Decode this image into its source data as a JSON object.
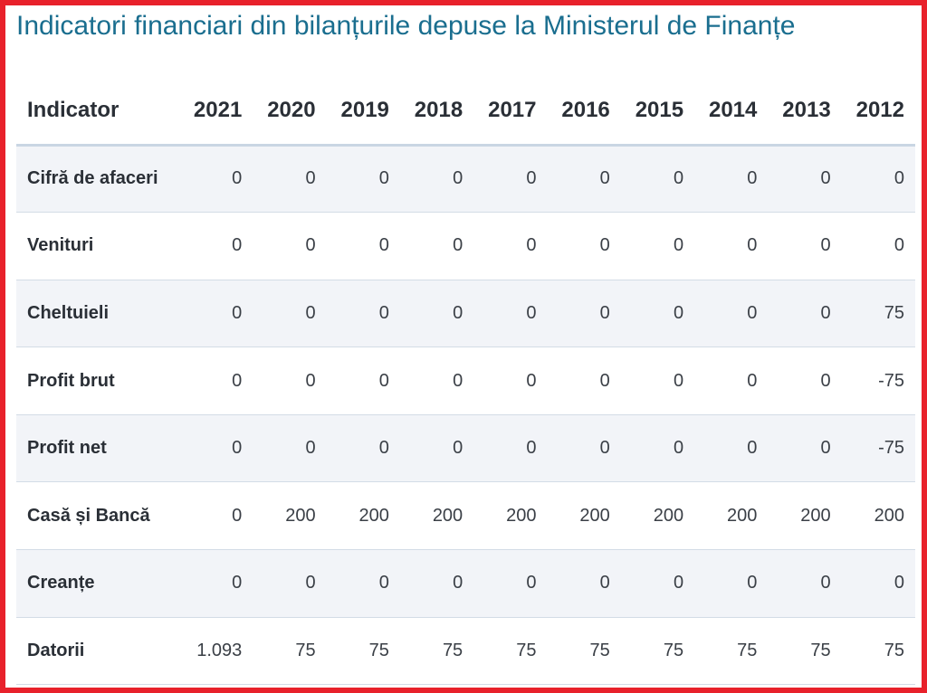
{
  "title": "Indicatori financiari din bilanțurile depuse la Ministerul de Finanțe",
  "table": {
    "indicator_header": "Indicator",
    "years": [
      "2021",
      "2020",
      "2019",
      "2018",
      "2017",
      "2016",
      "2015",
      "2014",
      "2013",
      "2012"
    ],
    "rows": [
      {
        "label": "Cifră de afaceri",
        "values": [
          "0",
          "0",
          "0",
          "0",
          "0",
          "0",
          "0",
          "0",
          "0",
          "0"
        ]
      },
      {
        "label": "Venituri",
        "values": [
          "0",
          "0",
          "0",
          "0",
          "0",
          "0",
          "0",
          "0",
          "0",
          "0"
        ]
      },
      {
        "label": "Cheltuieli",
        "values": [
          "0",
          "0",
          "0",
          "0",
          "0",
          "0",
          "0",
          "0",
          "0",
          "75"
        ]
      },
      {
        "label": "Profit brut",
        "values": [
          "0",
          "0",
          "0",
          "0",
          "0",
          "0",
          "0",
          "0",
          "0",
          "-75"
        ]
      },
      {
        "label": "Profit net",
        "values": [
          "0",
          "0",
          "0",
          "0",
          "0",
          "0",
          "0",
          "0",
          "0",
          "-75"
        ]
      },
      {
        "label": "Casă și Bancă",
        "values": [
          "0",
          "200",
          "200",
          "200",
          "200",
          "200",
          "200",
          "200",
          "200",
          "200"
        ]
      },
      {
        "label": "Creanțe",
        "values": [
          "0",
          "0",
          "0",
          "0",
          "0",
          "0",
          "0",
          "0",
          "0",
          "0"
        ]
      },
      {
        "label": "Datorii",
        "values": [
          "1.093",
          "75",
          "75",
          "75",
          "75",
          "75",
          "75",
          "75",
          "75",
          "75"
        ]
      }
    ]
  },
  "colors": {
    "frame_border": "#e8212b",
    "title": "#1a6e8f",
    "header_text": "#2a2f36",
    "cell_text": "#3a3f46",
    "row_stripe": "#f2f4f8",
    "row_divider": "#d3dce6",
    "header_divider": "#c9d6e3"
  }
}
